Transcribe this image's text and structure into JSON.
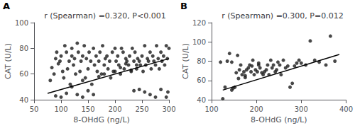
{
  "chart_data": [
    {
      "type": "scatter",
      "title": "r (Spearman) =0.320, P<0.001",
      "annotations": [
        "A"
      ],
      "x_label": "8-OHdG (ng/L)",
      "y_label": "CAT (U/L)",
      "xlim": [
        50,
        300
      ],
      "ylim": [
        40,
        100
      ],
      "xticks": [
        50,
        100,
        150,
        200,
        250,
        300
      ],
      "yticks": [
        40,
        60,
        80,
        100
      ],
      "grid": false,
      "series": [
        {
          "type": "scatter",
          "color": "#1a1a1a",
          "x": [
            80,
            83,
            87,
            90,
            92,
            95,
            98,
            100,
            103,
            105,
            107,
            110,
            112,
            115,
            117,
            120,
            120,
            123,
            125,
            127,
            130,
            132,
            135,
            137,
            140,
            140,
            143,
            145,
            147,
            150,
            152,
            155,
            157,
            160,
            162,
            165,
            167,
            170,
            172,
            175,
            177,
            180,
            182,
            185,
            187,
            190,
            192,
            195,
            197,
            200,
            202,
            205,
            207,
            210,
            212,
            215,
            217,
            220,
            222,
            225,
            227,
            230,
            232,
            235,
            237,
            240,
            242,
            245,
            247,
            250,
            252,
            255,
            257,
            260,
            262,
            265,
            267,
            270,
            272,
            275,
            277,
            280,
            282,
            285,
            287,
            290,
            292,
            295,
            297,
            300,
            295,
            298,
            285,
            275,
            265,
            255,
            245,
            235,
            180,
            170,
            160,
            150,
            140,
            130,
            120,
            110,
            100,
            90,
            200,
            210,
            220,
            230,
            240
          ],
          "values": [
            55,
            65,
            60,
            72,
            77,
            68,
            70,
            74,
            62,
            57,
            82,
            77,
            64,
            70,
            52,
            74,
            80,
            67,
            72,
            60,
            84,
            77,
            62,
            70,
            74,
            55,
            82,
            57,
            72,
            64,
            77,
            70,
            52,
            80,
            67,
            74,
            62,
            70,
            77,
            60,
            82,
            67,
            72,
            74,
            64,
            70,
            57,
            77,
            62,
            80,
            70,
            74,
            67,
            60,
            80,
            77,
            64,
            72,
            70,
            67,
            74,
            62,
            80,
            70,
            77,
            64,
            72,
            70,
            67,
            74,
            62,
            82,
            67,
            72,
            70,
            77,
            64,
            74,
            70,
            67,
            82,
            72,
            64,
            77,
            70,
            74,
            67,
            82,
            72,
            80,
            42,
            46,
            48,
            42,
            44,
            46,
            48,
            47,
            60,
            58,
            44,
            47,
            42,
            44,
            50,
            45,
            42,
            43,
            62,
            65,
            68,
            63,
            67
          ]
        },
        {
          "type": "line",
          "color": "#000000",
          "x": [
            75,
            300
          ],
          "values": [
            45.0,
            72.0
          ]
        }
      ]
    },
    {
      "type": "scatter",
      "title": "r (Spearman) =0.300, P=0.012",
      "annotations": [
        "B"
      ],
      "x_label": "8-OHdG (ng/L)",
      "y_label": "CAT (U/L)",
      "xlim": [
        100,
        400
      ],
      "ylim": [
        40,
        120
      ],
      "xticks": [
        100,
        200,
        300,
        400
      ],
      "yticks": [
        40,
        60,
        80,
        100,
        120
      ],
      "grid": false,
      "series": [
        {
          "type": "scatter",
          "color": "#1a1a1a",
          "x": [
            120,
            125,
            130,
            135,
            140,
            145,
            148,
            152,
            155,
            158,
            162,
            165,
            168,
            172,
            175,
            178,
            182,
            185,
            188,
            192,
            195,
            198,
            202,
            205,
            208,
            212,
            215,
            218,
            222,
            225,
            228,
            232,
            235,
            238,
            242,
            245,
            248,
            252,
            255,
            260,
            265,
            270,
            275,
            280,
            285,
            290,
            295,
            300,
            310,
            320,
            330,
            340,
            355,
            365,
            375,
            145,
            160,
            175,
            190,
            205
          ],
          "values": [
            79,
            41,
            53,
            80,
            88,
            79,
            52,
            53,
            68,
            86,
            71,
            76,
            66,
            69,
            63,
            71,
            73,
            76,
            69,
            81,
            66,
            71,
            69,
            76,
            73,
            68,
            66,
            69,
            71,
            76,
            66,
            81,
            73,
            76,
            69,
            71,
            79,
            76,
            66,
            81,
            73,
            75,
            53,
            57,
            75,
            78,
            81,
            78,
            76,
            101,
            81,
            79,
            76,
            106,
            80,
            50,
            62,
            65,
            75,
            78
          ]
        },
        {
          "type": "line",
          "color": "#000000",
          "x": [
            125,
            385
          ],
          "values": [
            50.0,
            87.0
          ]
        }
      ]
    }
  ]
}
